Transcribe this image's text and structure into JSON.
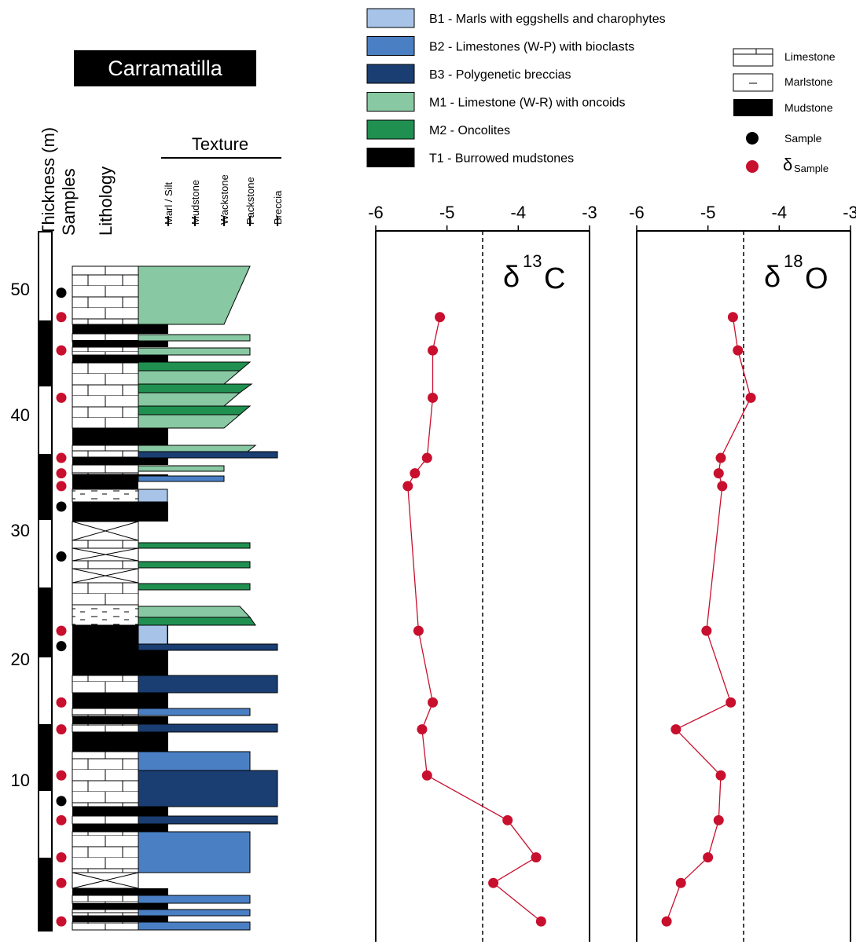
{
  "title": "Carramatilla",
  "column_headers": {
    "thickness": "Thickness (m)",
    "samples": "Samples",
    "lithology": "Lithology",
    "texture": "Texture"
  },
  "texture_classes": [
    "Marl / Silt",
    "Mudstone",
    "Wackstone",
    "Packstone",
    "Breccia"
  ],
  "thickness_ticks": [
    "10",
    "20",
    "30",
    "40",
    "50"
  ],
  "facies_legend": [
    {
      "label": "B1 - Marls with eggshells and charophytes",
      "color": "#a7c3e8"
    },
    {
      "label": "B2 - Limestones  (W-P) with bioclasts",
      "color": "#4a7fc4"
    },
    {
      "label": "B3 - Polygenetic breccias",
      "color": "#1a3e72"
    },
    {
      "label": "M1 - Limestone (W-R) with oncoids",
      "color": "#88c8a2"
    },
    {
      "label": "M2 - Oncolites",
      "color": "#209050"
    },
    {
      "label": "T1 - Burrowed mudstones",
      "color": "#000000"
    }
  ],
  "symbol_legend": {
    "limestone": "Limestone",
    "marlstone": "Marlstone",
    "mudstone": "Mudstone",
    "sample": "Sample",
    "delta_symbol": "δ",
    "delta_sample": "Sample"
  },
  "colors": {
    "red_sample": "#c8102e",
    "black_sample": "#000000"
  },
  "chart_data": [
    {
      "type": "line",
      "label_symbol": "δ",
      "label_sup": "13",
      "label_elem": "C",
      "xlim": [
        -6,
        -3
      ],
      "x_ticks": [
        "-6",
        "-5",
        "-4",
        "-3"
      ],
      "reference_line_x": -4.5,
      "ylim": [
        0,
        53
      ],
      "points": [
        {
          "thickness": 47.5,
          "value": -5.1
        },
        {
          "thickness": 44.9,
          "value": -5.2
        },
        {
          "thickness": 41.2,
          "value": -5.2
        },
        {
          "thickness": 36.5,
          "value": -5.28
        },
        {
          "thickness": 35.3,
          "value": -5.45
        },
        {
          "thickness": 34.3,
          "value": -5.55
        },
        {
          "thickness": 23.0,
          "value": -5.4
        },
        {
          "thickness": 17.4,
          "value": -5.2
        },
        {
          "thickness": 15.3,
          "value": -5.35
        },
        {
          "thickness": 11.7,
          "value": -5.28
        },
        {
          "thickness": 8.2,
          "value": -4.15
        },
        {
          "thickness": 5.3,
          "value": -3.75
        },
        {
          "thickness": 3.3,
          "value": -4.35
        },
        {
          "thickness": 0.3,
          "value": -3.68
        }
      ]
    },
    {
      "type": "line",
      "label_symbol": "δ",
      "label_sup": "18",
      "label_elem": "O",
      "xlim": [
        -6,
        -3
      ],
      "x_ticks": [
        "-6",
        "-5",
        "-4",
        "-3"
      ],
      "reference_line_x": -4.5,
      "ylim": [
        0,
        53
      ],
      "points": [
        {
          "thickness": 47.5,
          "value": -4.65
        },
        {
          "thickness": 44.9,
          "value": -4.58
        },
        {
          "thickness": 41.2,
          "value": -4.4
        },
        {
          "thickness": 36.5,
          "value": -4.82
        },
        {
          "thickness": 35.3,
          "value": -4.85
        },
        {
          "thickness": 34.3,
          "value": -4.8
        },
        {
          "thickness": 23.0,
          "value": -5.02
        },
        {
          "thickness": 17.4,
          "value": -4.68
        },
        {
          "thickness": 15.3,
          "value": -5.45
        },
        {
          "thickness": 11.7,
          "value": -4.82
        },
        {
          "thickness": 8.2,
          "value": -4.85
        },
        {
          "thickness": 5.3,
          "value": -5.0
        },
        {
          "thickness": 3.3,
          "value": -5.38
        },
        {
          "thickness": 0.3,
          "value": -5.58
        }
      ]
    }
  ],
  "samples": [
    {
      "thickness": 49.4,
      "type": "plain"
    },
    {
      "thickness": 47.5,
      "type": "delta"
    },
    {
      "thickness": 44.9,
      "type": "delta"
    },
    {
      "thickness": 41.2,
      "type": "delta"
    },
    {
      "thickness": 36.5,
      "type": "delta"
    },
    {
      "thickness": 35.3,
      "type": "delta"
    },
    {
      "thickness": 34.3,
      "type": "delta"
    },
    {
      "thickness": 32.7,
      "type": "plain"
    },
    {
      "thickness": 28.8,
      "type": "plain"
    },
    {
      "thickness": 23.0,
      "type": "delta"
    },
    {
      "thickness": 21.8,
      "type": "plain"
    },
    {
      "thickness": 17.4,
      "type": "delta"
    },
    {
      "thickness": 15.3,
      "type": "delta"
    },
    {
      "thickness": 11.7,
      "type": "delta"
    },
    {
      "thickness": 9.7,
      "type": "plain"
    },
    {
      "thickness": 8.2,
      "type": "delta"
    },
    {
      "thickness": 5.3,
      "type": "delta"
    },
    {
      "thickness": 3.3,
      "type": "delta"
    },
    {
      "thickness": 0.3,
      "type": "delta"
    }
  ]
}
